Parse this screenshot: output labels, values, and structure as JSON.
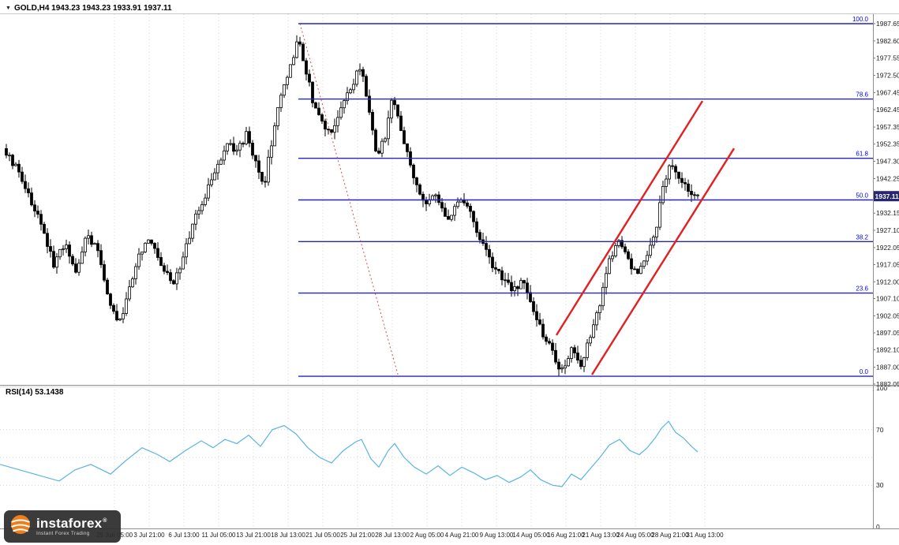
{
  "window": {
    "title_line": "GOLD,H4 1943.23 1943.23 1933.91 1937.11",
    "collapse_marker": "▼"
  },
  "rsi_panel": {
    "label": "RSI(14) 53.1438"
  },
  "watermark": {
    "brand": "instaforex",
    "registered": "®",
    "tagline": "Instant Forex Trading"
  },
  "colors": {
    "fib_line": "#2424c8",
    "fib_label": "#0000ee",
    "channel": "#e32020",
    "dotted": "#d05050",
    "candle": "#000000",
    "rsi_line": "#5ab4e5",
    "price_badge_bg": "#27276f",
    "grid": "#d9d9d9",
    "axis_text": "#1a1a1a",
    "separator": "#8f8f8f"
  },
  "chart_data": [
    {
      "type": "candlestick",
      "title": "GOLD H4",
      "symbol": "GOLD",
      "timeframe": "H4",
      "ohlc_display": {
        "open": "1943.23",
        "high": "1943.23",
        "low": "1933.91",
        "close": "1937.11"
      },
      "current_price": 1937.11,
      "ylim": [
        1880.0,
        1990.0
      ],
      "y_axis": {
        "current_price_label": "1937.11",
        "ticks": [
          "1987.65",
          "1982.60",
          "1977.55",
          "1972.50",
          "1967.45",
          "1962.45",
          "1957.35",
          "1952.35",
          "1947.30",
          "1942.25",
          "1937.20",
          "1932.15",
          "1927.10",
          "1922.05",
          "1917.05",
          "1912.00",
          "1907.10",
          "1902.05",
          "1897.05",
          "1892.10",
          "1887.00",
          "1882.05"
        ]
      },
      "x_axis": {
        "labels": [
          "29 Jun 05:00",
          "3 Jul 21:00",
          "6 Jul 13:00",
          "11 Jul 05:00",
          "13 Jul 21:00",
          "18 Jul 13:00",
          "21 Jul 05:00",
          "25 Jul 21:00",
          "28 Jul 13:00",
          "2 Aug 05:00",
          "4 Aug 21:00",
          "9 Aug 13:00",
          "14 Aug 05:00",
          "16 Aug 21:00",
          "21 Aug 13:00",
          "24 Aug 05:00",
          "28 Aug 21:00",
          "31 Aug 13:00"
        ]
      },
      "price_path": [
        [
          0,
          1953
        ],
        [
          14,
          1948
        ],
        [
          28,
          1942
        ],
        [
          42,
          1934
        ],
        [
          55,
          1927
        ],
        [
          68,
          1917
        ],
        [
          82,
          1923
        ],
        [
          96,
          1915
        ],
        [
          110,
          1926
        ],
        [
          124,
          1921
        ],
        [
          138,
          1906
        ],
        [
          152,
          1900
        ],
        [
          165,
          1912
        ],
        [
          178,
          1921
        ],
        [
          192,
          1924
        ],
        [
          205,
          1917
        ],
        [
          218,
          1911
        ],
        [
          232,
          1919
        ],
        [
          246,
          1930
        ],
        [
          260,
          1937
        ],
        [
          274,
          1946
        ],
        [
          288,
          1952
        ],
        [
          300,
          1950
        ],
        [
          312,
          1955
        ],
        [
          324,
          1947
        ],
        [
          335,
          1941
        ],
        [
          348,
          1958
        ],
        [
          358,
          1968
        ],
        [
          368,
          1976
        ],
        [
          378,
          1983
        ],
        [
          388,
          1974
        ],
        [
          398,
          1963
        ],
        [
          408,
          1958
        ],
        [
          418,
          1955
        ],
        [
          428,
          1961
        ],
        [
          438,
          1966
        ],
        [
          448,
          1971
        ],
        [
          458,
          1975
        ],
        [
          468,
          1961
        ],
        [
          478,
          1949
        ],
        [
          488,
          1954
        ],
        [
          497,
          1966
        ],
        [
          506,
          1959
        ],
        [
          515,
          1950
        ],
        [
          525,
          1941
        ],
        [
          538,
          1934
        ],
        [
          552,
          1937
        ],
        [
          566,
          1930
        ],
        [
          580,
          1936
        ],
        [
          594,
          1933
        ],
        [
          608,
          1925
        ],
        [
          622,
          1917
        ],
        [
          636,
          1913
        ],
        [
          650,
          1909
        ],
        [
          663,
          1912
        ],
        [
          676,
          1903
        ],
        [
          690,
          1896
        ],
        [
          702,
          1890
        ],
        [
          712,
          1886
        ],
        [
          724,
          1892
        ],
        [
          736,
          1888
        ],
        [
          748,
          1896
        ],
        [
          760,
          1906
        ],
        [
          772,
          1918
        ],
        [
          785,
          1924
        ],
        [
          798,
          1917
        ],
        [
          810,
          1915
        ],
        [
          820,
          1919
        ],
        [
          830,
          1926
        ],
        [
          838,
          1938
        ],
        [
          847,
          1946
        ],
        [
          856,
          1944
        ],
        [
          866,
          1941
        ],
        [
          876,
          1938
        ],
        [
          884,
          1937
        ]
      ],
      "fibonacci": {
        "start_x": 378,
        "levels": [
          {
            "pct": "100.0",
            "price": 1987.65
          },
          {
            "pct": "78.6",
            "price": 1965.55
          },
          {
            "pct": "61.8",
            "price": 1948.19
          },
          {
            "pct": "50.0",
            "price": 1935.99
          },
          {
            "pct": "38.2",
            "price": 1923.79
          },
          {
            "pct": "23.6",
            "price": 1908.7
          },
          {
            "pct": "0.0",
            "price": 1884.32
          }
        ]
      },
      "trend_channel": {
        "lines": [
          {
            "x1": 705,
            "price1": 1896.4,
            "x2": 890,
            "price2": 1965.0
          },
          {
            "x1": 750,
            "price1": 1884.8,
            "x2": 930,
            "price2": 1951.1
          }
        ]
      },
      "dotted_line": {
        "x1": 380,
        "price1": 1987.65,
        "x2": 505,
        "price2": 1884.1
      }
    },
    {
      "type": "line",
      "name": "RSI(14)",
      "value": "53.1438",
      "range": [
        0,
        100
      ],
      "levels": [
        70,
        50,
        30
      ],
      "axis_labels": [
        "100",
        "70",
        "30",
        "0"
      ],
      "points": [
        [
          0,
          45
        ],
        [
          25,
          41
        ],
        [
          50,
          37
        ],
        [
          75,
          33
        ],
        [
          95,
          41
        ],
        [
          115,
          45
        ],
        [
          140,
          38
        ],
        [
          160,
          48
        ],
        [
          180,
          57
        ],
        [
          200,
          52
        ],
        [
          215,
          47
        ],
        [
          235,
          55
        ],
        [
          255,
          62
        ],
        [
          270,
          57
        ],
        [
          285,
          63
        ],
        [
          300,
          60
        ],
        [
          315,
          66
        ],
        [
          330,
          58
        ],
        [
          345,
          70
        ],
        [
          360,
          73
        ],
        [
          375,
          67
        ],
        [
          390,
          57
        ],
        [
          405,
          50
        ],
        [
          420,
          46
        ],
        [
          435,
          55
        ],
        [
          450,
          61
        ],
        [
          458,
          63
        ],
        [
          470,
          49
        ],
        [
          480,
          43
        ],
        [
          492,
          55
        ],
        [
          500,
          60
        ],
        [
          512,
          50
        ],
        [
          525,
          43
        ],
        [
          540,
          38
        ],
        [
          555,
          44
        ],
        [
          570,
          37
        ],
        [
          585,
          43
        ],
        [
          600,
          39
        ],
        [
          615,
          34
        ],
        [
          630,
          37
        ],
        [
          645,
          32
        ],
        [
          660,
          36
        ],
        [
          672,
          41
        ],
        [
          685,
          34
        ],
        [
          700,
          30
        ],
        [
          712,
          29
        ],
        [
          724,
          38
        ],
        [
          736,
          34
        ],
        [
          748,
          42
        ],
        [
          760,
          50
        ],
        [
          772,
          59
        ],
        [
          785,
          63
        ],
        [
          798,
          55
        ],
        [
          810,
          52
        ],
        [
          820,
          57
        ],
        [
          830,
          64
        ],
        [
          838,
          71
        ],
        [
          847,
          76
        ],
        [
          856,
          68
        ],
        [
          866,
          64
        ],
        [
          876,
          58
        ],
        [
          884,
          54
        ]
      ]
    }
  ]
}
